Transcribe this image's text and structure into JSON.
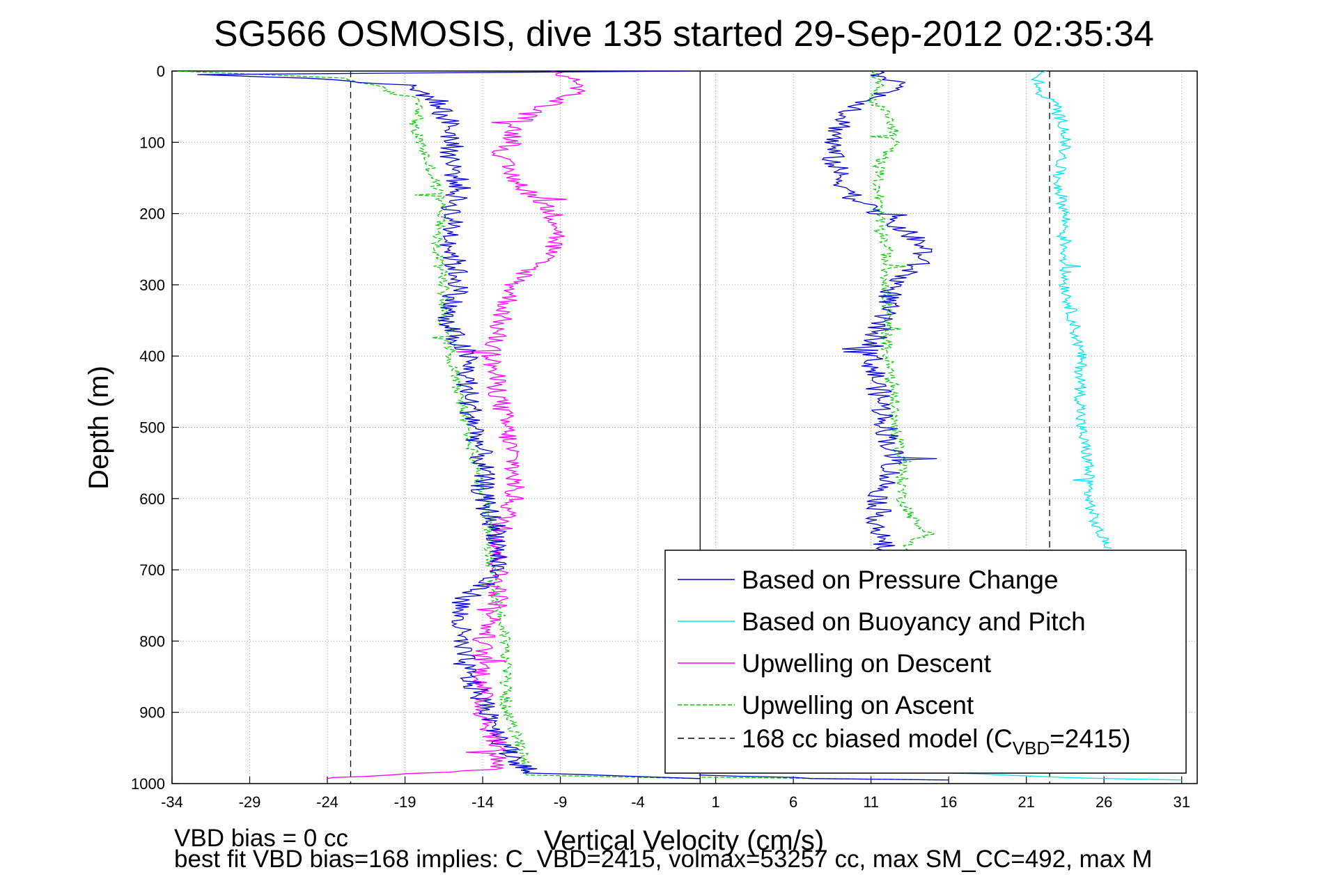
{
  "chart_data": {
    "type": "line",
    "title": "SG566 OSMOSIS, dive 135 started 29-Sep-2012 02:35:34",
    "xlabel": "Vertical Velocity (cm/s)",
    "ylabel": "Depth (m)",
    "xlim": [
      -34,
      32
    ],
    "ylim": [
      1000,
      0
    ],
    "y_reversed": true,
    "grid": true,
    "xticks": [
      -34,
      -29,
      -24,
      -19,
      -14,
      -9,
      -4,
      1,
      6,
      11,
      16,
      21,
      26,
      31
    ],
    "yticks": [
      0,
      100,
      200,
      300,
      400,
      500,
      600,
      700,
      800,
      900,
      1000
    ],
    "legend_position": "bottom-right",
    "series": [
      {
        "name": "Based on Pressure Change",
        "color": "#0000cc",
        "style": "solid",
        "noise": 0.8,
        "profiles": [
          {
            "depth": [
              0,
              5,
              10,
              20,
              40,
              60,
              80,
              100,
              130,
              160,
              200,
              250,
              300,
              350,
              400,
              450,
              500,
              550,
              600,
              650,
              700,
              750,
              800,
              850,
              900,
              950,
              985,
              993
            ],
            "value": [
              -1,
              -32,
              -25,
              -19,
              -17,
              -16.5,
              -16,
              -16,
              -16,
              -15.5,
              -16,
              -16,
              -15.5,
              -16.5,
              -15,
              -15,
              -14.5,
              -14,
              -14,
              -13,
              -13,
              -15.5,
              -15.5,
              -15,
              -13.5,
              -12.5,
              -11,
              0
            ]
          },
          {
            "depth": [
              0,
              20,
              40,
              60,
              80,
              100,
              120,
              150,
              180,
              200,
              230,
              250,
              270,
              300,
              330,
              360,
              400,
              450,
              500,
              550,
              600,
              650,
              680
            ],
            "value": [
              11,
              13,
              11,
              9.5,
              9,
              8.5,
              8.5,
              9,
              10,
              11.5,
              13.5,
              14.5,
              14,
              12.5,
              12,
              11.5,
              11,
              11.5,
              12,
              12.5,
              11.5,
              11.5,
              12
            ]
          },
          {
            "depth": [
              988,
              993,
              995
            ],
            "value": [
              0,
              8,
              16
            ]
          }
        ]
      },
      {
        "name": "Based on Buoyancy and Pitch",
        "color": "#00e5ee",
        "style": "solid",
        "noise": 0.4,
        "profiles": [
          {
            "depth": [
              0,
              10,
              20,
              30,
              40,
              50,
              60,
              80,
              100,
              150,
              200,
              250,
              300,
              350,
              400,
              450,
              500,
              550,
              600,
              640,
              660,
              670
            ],
            "value": [
              22,
              21.5,
              22,
              21.5,
              22.5,
              23,
              23,
              23.5,
              23.5,
              23,
              23.5,
              23.5,
              23.5,
              24,
              24.5,
              24.5,
              24.5,
              25,
              25,
              25.5,
              26,
              26.5
            ]
          },
          {
            "depth": [
              985,
              992,
              995
            ],
            "value": [
              16,
              24,
              31
            ]
          }
        ]
      },
      {
        "name": "Upwelling on Descent",
        "color": "#ff00ff",
        "style": "solid",
        "noise": 0.7,
        "profiles": [
          {
            "depth": [
              0,
              10,
              20,
              30,
              40,
              60,
              80,
              100,
              120,
              150,
              180,
              200,
              220,
              250,
              280,
              300,
              330,
              360,
              400,
              450,
              500,
              550,
              600,
              650,
              700,
              750,
              800,
              850,
              900,
              950,
              980,
              990,
              993
            ],
            "value": [
              -9,
              -8.5,
              -7.5,
              -8,
              -9,
              -11,
              -12,
              -12,
              -13,
              -12,
              -10.5,
              -9.5,
              -9,
              -9.5,
              -11,
              -12,
              -12.5,
              -13,
              -13.5,
              -13,
              -12.5,
              -12,
              -12,
              -13,
              -13,
              -13,
              -14,
              -14,
              -14,
              -13,
              -13,
              -22,
              -24
            ]
          }
        ]
      },
      {
        "name": "Upwelling on Ascent",
        "color": "#00cc00",
        "style": "dashed",
        "noise": 0.4,
        "profiles": [
          {
            "depth": [
              0,
              5,
              10,
              20,
              30,
              40,
              60,
              80,
              100,
              130,
              160,
              200,
              250,
              300,
              350,
              400,
              450,
              500,
              550,
              600,
              650,
              700,
              750,
              800,
              850,
              900,
              950,
              988,
              993
            ],
            "value": [
              -34,
              -28,
              -23,
              -21,
              -20,
              -18,
              -18,
              -18.5,
              -18,
              -17.5,
              -17,
              -16.5,
              -17,
              -16.5,
              -16.5,
              -16,
              -15.5,
              -15,
              -14.5,
              -14,
              -13.5,
              -13.5,
              -13,
              -12.5,
              -12.5,
              -12.5,
              -11.5,
              -11,
              0
            ]
          },
          {
            "depth": [
              0,
              20,
              40,
              60,
              80,
              100,
              130,
              160,
              200,
              250,
              300,
              350,
              400,
              450,
              500,
              550,
              600,
              640,
              650,
              660,
              680
            ],
            "value": [
              11,
              11.5,
              11,
              12,
              12.5,
              12.5,
              11.5,
              11.5,
              11.5,
              12,
              12,
              12,
              12,
              12.5,
              12.5,
              13,
              13,
              14,
              15,
              13.5,
              13
            ]
          },
          {
            "depth": [
              991,
              993,
              995
            ],
            "value": [
              0,
              8,
              16
            ]
          }
        ]
      },
      {
        "name": "168 cc biased model (C",
        "name_subscript": "VBD",
        "name_suffix": "=2415)",
        "color": "#000000",
        "style": "dashed",
        "noise": 0,
        "profiles": [
          {
            "depth": [
              0,
              1000
            ],
            "value": [
              -22.5,
              -22.5
            ]
          },
          {
            "depth": [
              0,
              1000
            ],
            "value": [
              22.5,
              22.5
            ]
          }
        ]
      }
    ],
    "reference_line": {
      "x": 0,
      "depth": [
        0,
        1000
      ],
      "color": "#000000"
    }
  },
  "footer": {
    "line1": "VBD bias = 0 cc",
    "line2": "best fit VBD bias=168 implies: C_VBD=2415, volmax=53257 cc, max SM_CC=492, max M"
  }
}
